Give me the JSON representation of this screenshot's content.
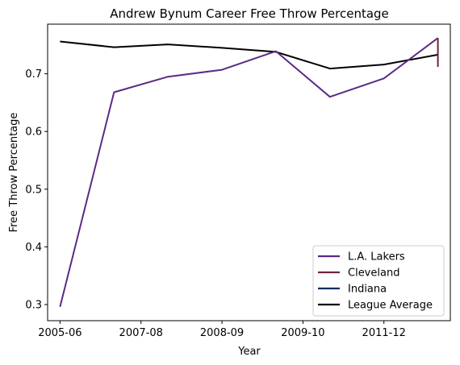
{
  "chart_data": {
    "type": "line",
    "title": "Andrew Bynum Career Free Throw Percentage",
    "xlabel": "Year",
    "ylabel": "Free Throw Percentage",
    "x_tick_labels": [
      "2005-06",
      "2007-08",
      "2008-09",
      "2009-10",
      "2011-12"
    ],
    "y_ticks": [
      0.3,
      0.4,
      0.5,
      0.6,
      0.7
    ],
    "ylim": [
      0.272,
      0.786
    ],
    "grid": false,
    "legend_position": "lower right",
    "series": [
      {
        "name": "L.A. Lakers",
        "color": "#5b2a86",
        "x": [
          2005,
          2006,
          2007,
          2008,
          2009,
          2010,
          2011,
          2012
        ],
        "y": [
          0.296,
          0.668,
          0.695,
          0.707,
          0.739,
          0.66,
          0.692,
          0.762
        ]
      },
      {
        "name": "Cleveland",
        "color": "#6f263d",
        "x": [
          2012,
          2012
        ],
        "y": [
          0.762,
          0.712
        ]
      },
      {
        "name": "Indiana",
        "color": "#002d62",
        "x": [],
        "y": []
      },
      {
        "name": "League Average",
        "color": "#000000",
        "x": [
          2005,
          2006,
          2007,
          2008,
          2009,
          2010,
          2011,
          2012
        ],
        "y": [
          0.756,
          0.746,
          0.751,
          0.745,
          0.738,
          0.709,
          0.716,
          0.733
        ]
      }
    ]
  }
}
